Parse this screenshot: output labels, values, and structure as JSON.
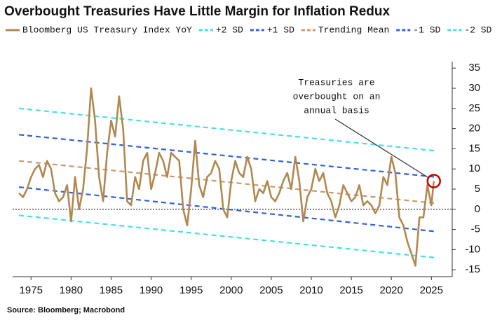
{
  "chart_data": {
    "type": "line",
    "title": "Overbought Treasuries Have Little Margin for Inflation Redux",
    "source": "Source: Bloomberg; Macrobond",
    "annotation": [
      "Treasuries are",
      "overbought on an",
      "annual basis"
    ],
    "xlim": [
      1972.7,
      2027.6
    ],
    "ylim": [
      -16.7,
      36.6
    ],
    "xticks": [
      1975,
      1980,
      1985,
      1990,
      1995,
      2000,
      2005,
      2010,
      2015,
      2020,
      2025
    ],
    "yticks": [
      -15,
      -10,
      -5,
      0,
      5,
      10,
      15,
      20,
      25,
      30,
      35
    ],
    "series": [
      {
        "name": "Bloomberg US Treasury Index YoY",
        "color": "#b08850",
        "dash": false,
        "x": [
          1973.5,
          1974,
          1974.5,
          1975,
          1975.5,
          1976,
          1976.5,
          1977,
          1977.5,
          1978,
          1978.5,
          1979,
          1979.5,
          1980,
          1980.5,
          1981,
          1981.5,
          1982,
          1982.5,
          1983,
          1983.5,
          1984,
          1984.5,
          1985,
          1985.5,
          1986,
          1986.5,
          1987,
          1987.5,
          1988,
          1988.5,
          1989,
          1989.5,
          1990,
          1990.5,
          1991,
          1991.5,
          1992,
          1992.5,
          1993,
          1993.5,
          1994,
          1994.5,
          1995,
          1995.5,
          1996,
          1996.5,
          1997,
          1997.5,
          1998,
          1998.5,
          1999,
          1999.5,
          2000,
          2000.5,
          2001,
          2001.5,
          2002,
          2002.5,
          2003,
          2003.5,
          2004,
          2004.5,
          2005,
          2005.5,
          2006,
          2006.5,
          2007,
          2007.5,
          2008,
          2008.5,
          2009,
          2009.5,
          2010,
          2010.5,
          2011,
          2011.5,
          2012,
          2012.5,
          2013,
          2013.5,
          2014,
          2014.5,
          2015,
          2015.5,
          2016,
          2016.5,
          2017,
          2017.5,
          2018,
          2018.5,
          2019,
          2019.5,
          2020,
          2020.5,
          2021,
          2021.5,
          2022,
          2022.5,
          2023,
          2023.5,
          2024,
          2024.5,
          2025,
          2025.3
        ],
        "values": [
          4,
          3,
          5,
          8,
          10,
          11,
          8,
          12,
          10,
          4,
          2,
          3,
          6,
          -3,
          8,
          0,
          5,
          15,
          30,
          22,
          8,
          2,
          14,
          22,
          18,
          28,
          20,
          2,
          1,
          8,
          5,
          12,
          14,
          5,
          9,
          14,
          12,
          8,
          14,
          13,
          12,
          0,
          -4,
          5,
          17,
          6,
          3,
          8,
          9,
          12,
          10,
          0,
          -2,
          7,
          12,
          9,
          8,
          13,
          10,
          2,
          5,
          4,
          7,
          3,
          2,
          4,
          7,
          9,
          5,
          13,
          7,
          -3,
          3,
          5,
          10,
          7,
          9,
          4,
          2,
          -2,
          1,
          6,
          4,
          2,
          3,
          6,
          1,
          2,
          1,
          -1,
          1,
          8,
          6,
          13,
          9,
          -2,
          -4,
          -8,
          -11,
          -14,
          -2,
          -2,
          6,
          1,
          7
        ]
      },
      {
        "name": "+2 SD",
        "color": "#44e0e8",
        "dash": true,
        "x": [
          1973.5,
          2025.5
        ],
        "values": [
          25,
          14.5
        ]
      },
      {
        "name": "+1 SD",
        "color": "#2f62d8",
        "dash": true,
        "x": [
          1973.5,
          2025.5
        ],
        "values": [
          18.5,
          8
        ]
      },
      {
        "name": "Trending Mean",
        "color": "#c89a70",
        "dash": true,
        "x": [
          1973.5,
          2025.5
        ],
        "values": [
          12,
          1.5
        ]
      },
      {
        "name": "-1 SD",
        "color": "#2f62d8",
        "dash": true,
        "x": [
          1973.5,
          2025.5
        ],
        "values": [
          5.5,
          -5.5
        ]
      },
      {
        "name": "-2 SD",
        "color": "#44e0e8",
        "dash": true,
        "x": [
          1973.5,
          2025.5
        ],
        "values": [
          -1.5,
          -12
        ]
      }
    ]
  }
}
